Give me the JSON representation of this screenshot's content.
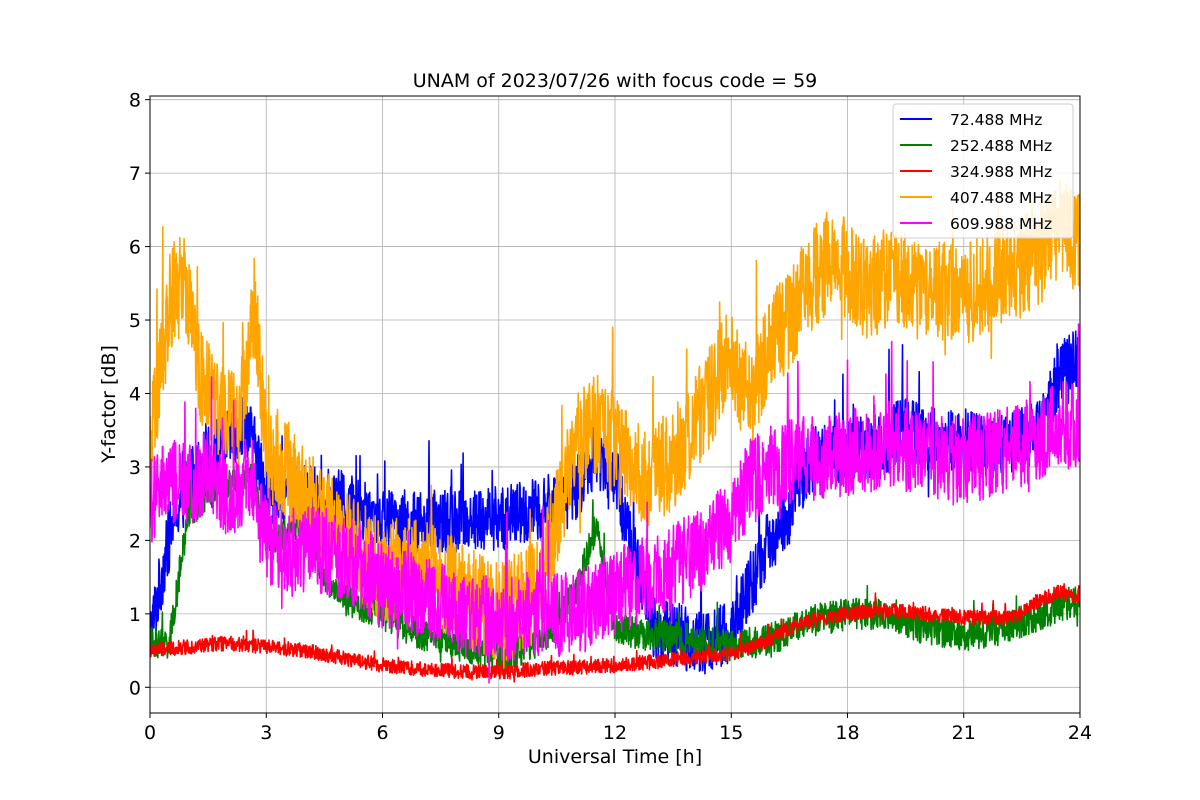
{
  "chart_data": {
    "type": "line",
    "title": "UNAM of 2023/07/26 with focus code = 59",
    "xlabel": "Universal Time [h]",
    "ylabel": "Y-factor [dB]",
    "xlim": [
      0,
      24
    ],
    "ylim": [
      -0.35,
      8.05
    ],
    "xticks": [
      0,
      3,
      6,
      9,
      12,
      15,
      18,
      21,
      24
    ],
    "yticks": [
      0,
      1,
      2,
      3,
      4,
      5,
      6,
      7,
      8
    ],
    "grid": true,
    "legend_position": "top-right",
    "series": [
      {
        "name": " 72.488 MHz",
        "color": "#0000ff",
        "keypoints": [
          [
            0,
            0.7
          ],
          [
            0.3,
            1.5
          ],
          [
            0.6,
            2.3
          ],
          [
            1.0,
            2.8
          ],
          [
            1.5,
            3.1
          ],
          [
            2.0,
            3.4
          ],
          [
            2.5,
            3.6
          ],
          [
            3.0,
            2.7
          ],
          [
            4.0,
            2.6
          ],
          [
            5.0,
            2.5
          ],
          [
            6.0,
            2.3
          ],
          [
            7.0,
            2.2
          ],
          [
            8.0,
            2.3
          ],
          [
            9.0,
            2.3
          ],
          [
            10.0,
            2.4
          ],
          [
            10.5,
            2.5
          ],
          [
            11.0,
            2.7
          ],
          [
            11.5,
            3.2
          ],
          [
            12.0,
            2.9
          ],
          [
            12.5,
            1.8
          ],
          [
            13.0,
            0.8
          ],
          [
            14.0,
            0.65
          ],
          [
            14.5,
            0.6
          ],
          [
            15.0,
            0.75
          ],
          [
            15.5,
            1.4
          ],
          [
            16.0,
            2.0
          ],
          [
            16.5,
            2.4
          ],
          [
            17.0,
            3.1
          ],
          [
            18.0,
            3.2
          ],
          [
            19.0,
            3.3
          ],
          [
            19.5,
            3.6
          ],
          [
            20.0,
            3.4
          ],
          [
            21.0,
            3.3
          ],
          [
            22.0,
            3.3
          ],
          [
            23.0,
            3.5
          ],
          [
            23.5,
            4.3
          ],
          [
            24.0,
            4.5
          ]
        ],
        "noise": 0.45
      },
      {
        "name": "252.488 MHz",
        "color": "#008000",
        "keypoints": [
          [
            0,
            0.6
          ],
          [
            0.5,
            0.6
          ],
          [
            1.0,
            2.4
          ],
          [
            2.0,
            2.8
          ],
          [
            2.6,
            2.9
          ],
          [
            3.0,
            2.0
          ],
          [
            4.0,
            2.2
          ],
          [
            4.5,
            1.5
          ],
          [
            5.0,
            1.2
          ],
          [
            6.0,
            1.0
          ],
          [
            7.0,
            0.7
          ],
          [
            8.0,
            0.6
          ],
          [
            9.0,
            0.4
          ],
          [
            10.0,
            0.6
          ],
          [
            10.5,
            0.9
          ],
          [
            11.0,
            1.3
          ],
          [
            11.5,
            2.2
          ],
          [
            12.0,
            0.8
          ],
          [
            13.0,
            0.7
          ],
          [
            14.0,
            0.65
          ],
          [
            15.0,
            0.55
          ],
          [
            16.0,
            0.65
          ],
          [
            17.0,
            0.9
          ],
          [
            18.0,
            1.0
          ],
          [
            19.0,
            1.0
          ],
          [
            20.0,
            0.8
          ],
          [
            21.0,
            0.7
          ],
          [
            22.0,
            0.8
          ],
          [
            23.0,
            1.0
          ],
          [
            24.0,
            1.2
          ]
        ],
        "noise": 0.22
      },
      {
        "name": "324.988 MHz",
        "color": "#ff0000",
        "keypoints": [
          [
            0,
            0.5
          ],
          [
            1.0,
            0.55
          ],
          [
            2.0,
            0.6
          ],
          [
            3.0,
            0.55
          ],
          [
            4.0,
            0.5
          ],
          [
            5.0,
            0.4
          ],
          [
            6.0,
            0.3
          ],
          [
            7.0,
            0.25
          ],
          [
            8.0,
            0.22
          ],
          [
            9.0,
            0.2
          ],
          [
            10.0,
            0.25
          ],
          [
            11.0,
            0.27
          ],
          [
            12.0,
            0.3
          ],
          [
            13.0,
            0.35
          ],
          [
            14.0,
            0.4
          ],
          [
            15.0,
            0.45
          ],
          [
            15.5,
            0.55
          ],
          [
            16.0,
            0.65
          ],
          [
            16.5,
            0.8
          ],
          [
            17.0,
            0.9
          ],
          [
            18.0,
            1.0
          ],
          [
            19.0,
            1.05
          ],
          [
            20.0,
            1.0
          ],
          [
            21.0,
            0.95
          ],
          [
            22.0,
            0.95
          ],
          [
            22.5,
            1.0
          ],
          [
            23.0,
            1.2
          ],
          [
            23.5,
            1.3
          ],
          [
            24.0,
            1.15
          ]
        ],
        "noise": 0.1
      },
      {
        "name": "407.488 MHz",
        "color": "#ffa500",
        "keypoints": [
          [
            0,
            3.2
          ],
          [
            0.5,
            5.2
          ],
          [
            0.9,
            5.6
          ],
          [
            1.3,
            4.3
          ],
          [
            1.8,
            3.8
          ],
          [
            2.3,
            3.6
          ],
          [
            2.7,
            5.2
          ],
          [
            3.0,
            3.2
          ],
          [
            3.5,
            3.0
          ],
          [
            4.0,
            2.6
          ],
          [
            4.5,
            2.3
          ],
          [
            5.0,
            2.0
          ],
          [
            6.0,
            1.6
          ],
          [
            7.0,
            1.6
          ],
          [
            8.0,
            1.3
          ],
          [
            9.0,
            1.0
          ],
          [
            10.0,
            1.3
          ],
          [
            10.5,
            2.3
          ],
          [
            11.0,
            3.3
          ],
          [
            11.5,
            3.6
          ],
          [
            12.0,
            3.3
          ],
          [
            12.5,
            2.9
          ],
          [
            13.0,
            2.9
          ],
          [
            13.5,
            3.1
          ],
          [
            14.0,
            3.6
          ],
          [
            14.5,
            4.0
          ],
          [
            15.0,
            4.6
          ],
          [
            15.5,
            3.8
          ],
          [
            16.0,
            4.7
          ],
          [
            16.5,
            5.0
          ],
          [
            17.0,
            5.5
          ],
          [
            17.5,
            5.8
          ],
          [
            18.0,
            5.7
          ],
          [
            18.5,
            5.4
          ],
          [
            19.0,
            5.6
          ],
          [
            19.5,
            5.5
          ],
          [
            20.0,
            5.3
          ],
          [
            20.5,
            5.4
          ],
          [
            21.0,
            5.3
          ],
          [
            21.5,
            5.5
          ],
          [
            22.0,
            5.6
          ],
          [
            22.5,
            5.7
          ],
          [
            23.0,
            5.9
          ],
          [
            23.5,
            6.3
          ],
          [
            24.0,
            6.0
          ]
        ],
        "noise": 0.7
      },
      {
        "name": "609.988 MHz",
        "color": "#ff00ff",
        "keypoints": [
          [
            0,
            2.5
          ],
          [
            0.5,
            2.8
          ],
          [
            1.0,
            2.7
          ],
          [
            1.5,
            3.0
          ],
          [
            2.0,
            2.6
          ],
          [
            2.5,
            2.8
          ],
          [
            3.0,
            2.0
          ],
          [
            3.5,
            1.9
          ],
          [
            4.0,
            1.9
          ],
          [
            5.0,
            1.8
          ],
          [
            6.0,
            1.4
          ],
          [
            7.0,
            1.2
          ],
          [
            8.0,
            1.0
          ],
          [
            9.0,
            0.9
          ],
          [
            10.0,
            1.0
          ],
          [
            11.0,
            1.0
          ],
          [
            12.0,
            1.3
          ],
          [
            13.0,
            1.5
          ],
          [
            14.0,
            1.8
          ],
          [
            14.5,
            2.0
          ],
          [
            15.0,
            2.3
          ],
          [
            15.5,
            2.8
          ],
          [
            16.0,
            3.0
          ],
          [
            17.0,
            3.1
          ],
          [
            18.0,
            3.2
          ],
          [
            19.0,
            3.3
          ],
          [
            20.0,
            3.2
          ],
          [
            21.0,
            3.1
          ],
          [
            22.0,
            3.2
          ],
          [
            23.0,
            3.4
          ],
          [
            23.5,
            3.6
          ],
          [
            24.0,
            3.5
          ]
        ],
        "noise": 0.6
      }
    ]
  }
}
